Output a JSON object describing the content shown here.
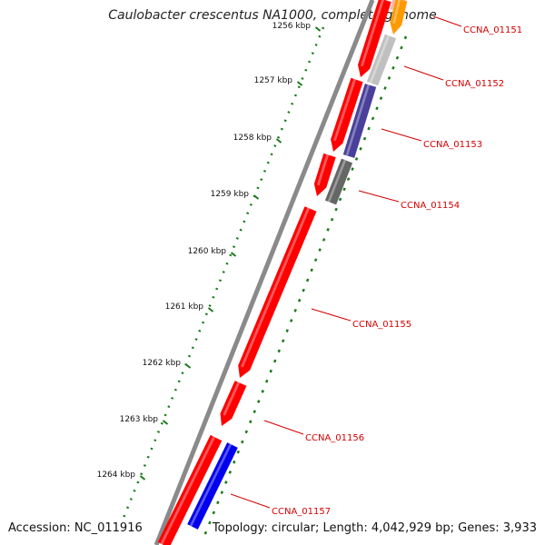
{
  "title": "Caulobacter crescentus NA1000, complete genome",
  "footer": {
    "accession": "Accession: NC_011916",
    "summary": "Topology: circular; Length: 4,042,929 bp; Genes: 3,933"
  },
  "ruler": {
    "tick_color": "#1a7a1a",
    "ticks": [
      {
        "label": "1256 kbp"
      },
      {
        "label": "1257 kbp"
      },
      {
        "label": "1258 kbp"
      },
      {
        "label": "1259 kbp"
      },
      {
        "label": "1260 kbp"
      },
      {
        "label": "1261 kbp"
      },
      {
        "label": "1262 kbp"
      },
      {
        "label": "1263 kbp"
      },
      {
        "label": "1264 kbp"
      }
    ]
  },
  "genes": [
    {
      "label": "CCNA_01151",
      "color": "#ff0000",
      "strand": "minus"
    },
    {
      "label": "CCNA_01152",
      "color": "#c0c0c0",
      "strand": "plus"
    },
    {
      "label": "CCNA_01153",
      "color": "#48409a",
      "strand": "plus"
    },
    {
      "label": "CCNA_01154",
      "color": "#666666",
      "strand": "plus"
    },
    {
      "label": "CCNA_01155",
      "color": "#ff0000",
      "strand": "minus"
    },
    {
      "label": "CCNA_01156",
      "color": "#ff0000",
      "strand": "minus"
    },
    {
      "label": "CCNA_01157",
      "color": "#0000ee",
      "strand": "plus"
    }
  ],
  "colors": {
    "backbone": "#8a8a8a",
    "minus_strand": "#ff0000",
    "plus_orange": "#ff9900",
    "pale_red": "#f4b6b6",
    "label_red": "#d40000"
  }
}
